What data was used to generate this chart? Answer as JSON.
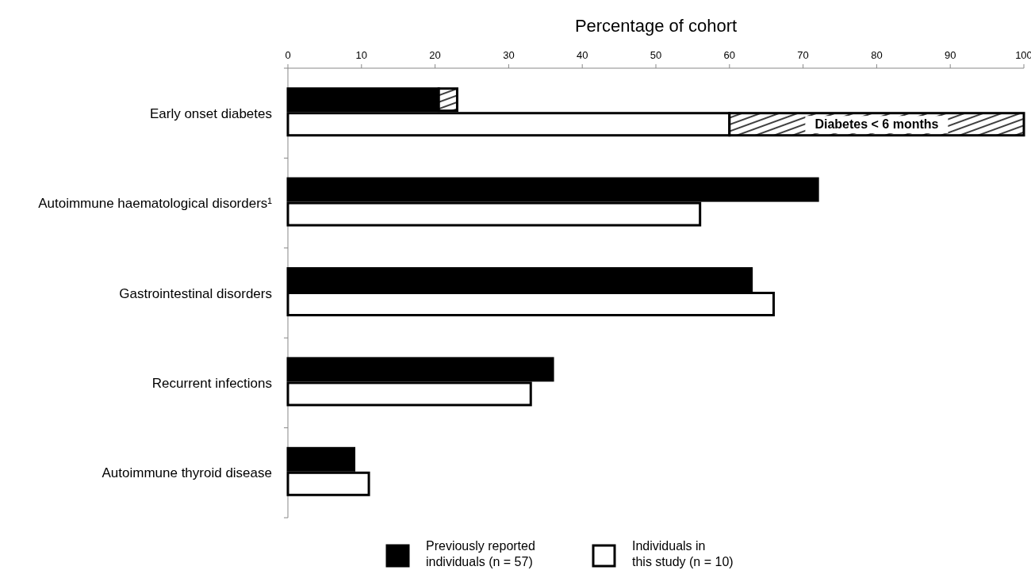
{
  "chart_data": {
    "type": "bar",
    "orientation": "horizontal",
    "xlabel": "Percentage of cohort",
    "categories": [
      "Early onset diabetes",
      "Autoimmune haematological disorders¹",
      "Gastrointestinal disorders",
      "Recurrent infections",
      "Autoimmune thyroid disease"
    ],
    "xlim": [
      0,
      100
    ],
    "xticks": [
      0,
      10,
      20,
      30,
      40,
      50,
      60,
      70,
      80,
      90,
      100
    ],
    "legend": "bottom",
    "grid": false,
    "series": [
      {
        "name": "Previously reported individuals (n = 57)",
        "color": "#000000",
        "values": [
          20.5,
          72,
          63,
          36,
          9
        ]
      },
      {
        "color": "#000000",
        "base": [
          20.5,
          null,
          null,
          null,
          null
        ],
        "values": [
          2.5,
          null,
          null,
          null,
          null
        ]
      },
      {
        "name": "Individuals in this study (n = 10)",
        "color": "#ffffff",
        "values": [
          60,
          56,
          66,
          33,
          11
        ]
      },
      {
        "color": "#000000",
        "base": [
          60,
          null,
          null,
          null,
          null
        ],
        "values": [
          40,
          null,
          null,
          null,
          null
        ]
      }
    ],
    "annotations": [
      "Diabetes < 6 months"
    ]
  }
}
